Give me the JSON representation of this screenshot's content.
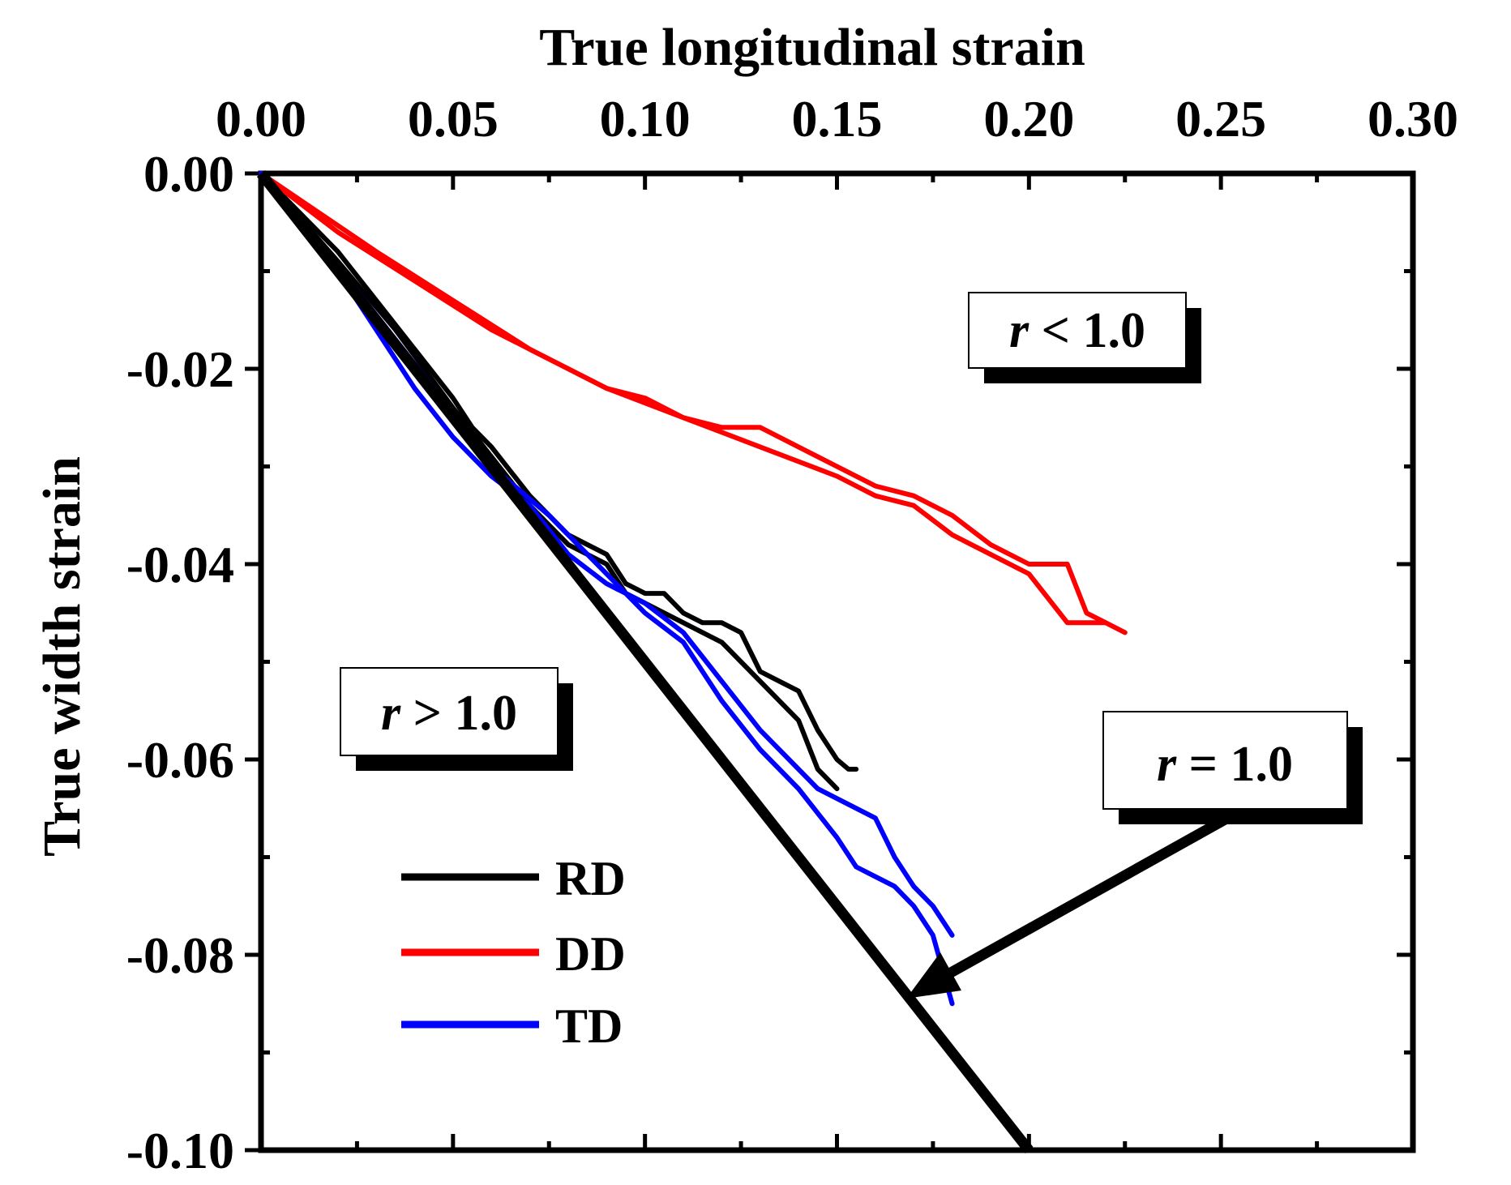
{
  "chart_data": {
    "type": "line",
    "xlabel": "True longitudinal strain",
    "ylabel": "True width strain",
    "xlim": [
      0.0,
      0.3
    ],
    "ylim": [
      -0.1,
      0.0
    ],
    "xticks": [
      "0.00",
      "0.05",
      "0.10",
      "0.15",
      "0.20",
      "0.25",
      "0.30"
    ],
    "yticks": [
      "0.00",
      "-0.02",
      "-0.04",
      "-0.06",
      "-0.08",
      "-0.10"
    ],
    "xtick_values": [
      0.0,
      0.05,
      0.1,
      0.15,
      0.2,
      0.25,
      0.3
    ],
    "ytick_values": [
      0.0,
      -0.02,
      -0.04,
      -0.06,
      -0.08,
      -0.1
    ],
    "x_axis_position": "top",
    "reference_line": {
      "label": "r = 1.0",
      "x": [
        0.0,
        0.2
      ],
      "y": [
        0.0,
        -0.1
      ],
      "color": "#000000"
    },
    "annotations": [
      {
        "italic": "r",
        "rest": " < 1.0",
        "region": "upper-right"
      },
      {
        "italic": "r",
        "rest": " > 1.0",
        "region": "lower-left"
      },
      {
        "italic": "r",
        "rest": " = 1.0",
        "region": "right",
        "arrow_to": [
          0.166,
          -0.0835
        ]
      }
    ],
    "legend": [
      {
        "name": "RD",
        "color": "#000000"
      },
      {
        "name": "DD",
        "color": "#ff0000"
      },
      {
        "name": "TD",
        "color": "#0000ff"
      }
    ],
    "series": [
      {
        "name": "RD",
        "color": "#000000",
        "x": [
          0.0,
          0.02,
          0.03,
          0.04,
          0.05,
          0.055,
          0.06,
          0.07,
          0.08,
          0.085,
          0.09,
          0.095,
          0.1,
          0.105,
          0.11,
          0.115,
          0.12,
          0.125,
          0.13,
          0.135,
          0.14,
          0.145,
          0.15,
          0.153,
          0.155
        ],
        "y": [
          0.0,
          -0.008,
          -0.013,
          -0.018,
          -0.023,
          -0.026,
          -0.028,
          -0.033,
          -0.037,
          -0.038,
          -0.039,
          -0.042,
          -0.043,
          -0.043,
          -0.045,
          -0.046,
          -0.046,
          -0.047,
          -0.051,
          -0.052,
          -0.053,
          -0.057,
          -0.06,
          -0.061,
          -0.061
        ]
      },
      {
        "name": "RD",
        "color": "#000000",
        "x": [
          0.0,
          0.02,
          0.035,
          0.05,
          0.06,
          0.07,
          0.08,
          0.09,
          0.095,
          0.1,
          0.11,
          0.12,
          0.13,
          0.14,
          0.145,
          0.15
        ],
        "y": [
          0.0,
          -0.009,
          -0.016,
          -0.024,
          -0.029,
          -0.034,
          -0.038,
          -0.04,
          -0.043,
          -0.044,
          -0.046,
          -0.048,
          -0.052,
          -0.056,
          -0.061,
          -0.063
        ]
      },
      {
        "name": "DD",
        "color": "#ff0000",
        "x": [
          0.0,
          0.02,
          0.04,
          0.06,
          0.07,
          0.08,
          0.09,
          0.1,
          0.11,
          0.12,
          0.13,
          0.14,
          0.15,
          0.16,
          0.17,
          0.18,
          0.19,
          0.2,
          0.21,
          0.215,
          0.22,
          0.225
        ],
        "y": [
          0.0,
          -0.006,
          -0.011,
          -0.016,
          -0.018,
          -0.02,
          -0.022,
          -0.023,
          -0.025,
          -0.026,
          -0.026,
          -0.028,
          -0.03,
          -0.032,
          -0.033,
          -0.035,
          -0.038,
          -0.04,
          -0.04,
          -0.045,
          -0.046,
          -0.047
        ]
      },
      {
        "name": "DD",
        "color": "#ff0000",
        "x": [
          0.0,
          0.03,
          0.05,
          0.07,
          0.09,
          0.11,
          0.13,
          0.15,
          0.16,
          0.17,
          0.18,
          0.19,
          0.2,
          0.21,
          0.22
        ],
        "y": [
          0.0,
          -0.008,
          -0.013,
          -0.018,
          -0.022,
          -0.025,
          -0.028,
          -0.031,
          -0.033,
          -0.034,
          -0.037,
          -0.039,
          -0.041,
          -0.046,
          -0.046
        ]
      },
      {
        "name": "TD",
        "color": "#0000ff",
        "x": [
          0.0,
          0.02,
          0.03,
          0.04,
          0.05,
          0.06,
          0.07,
          0.08,
          0.09,
          0.1,
          0.11,
          0.12,
          0.13,
          0.14,
          0.145,
          0.15,
          0.16,
          0.165,
          0.17,
          0.175,
          0.18
        ],
        "y": [
          0.0,
          -0.01,
          -0.016,
          -0.022,
          -0.027,
          -0.031,
          -0.034,
          -0.039,
          -0.042,
          -0.044,
          -0.047,
          -0.052,
          -0.057,
          -0.061,
          -0.063,
          -0.064,
          -0.066,
          -0.07,
          -0.073,
          -0.075,
          -0.078
        ]
      },
      {
        "name": "TD",
        "color": "#0000ff",
        "x": [
          0.0,
          0.025,
          0.045,
          0.06,
          0.075,
          0.09,
          0.1,
          0.11,
          0.12,
          0.13,
          0.14,
          0.15,
          0.155,
          0.16,
          0.165,
          0.17,
          0.175,
          0.18
        ],
        "y": [
          0.0,
          -0.012,
          -0.022,
          -0.03,
          -0.035,
          -0.041,
          -0.045,
          -0.048,
          -0.054,
          -0.059,
          -0.063,
          -0.068,
          -0.071,
          -0.072,
          -0.073,
          -0.075,
          -0.078,
          -0.085
        ]
      }
    ]
  }
}
